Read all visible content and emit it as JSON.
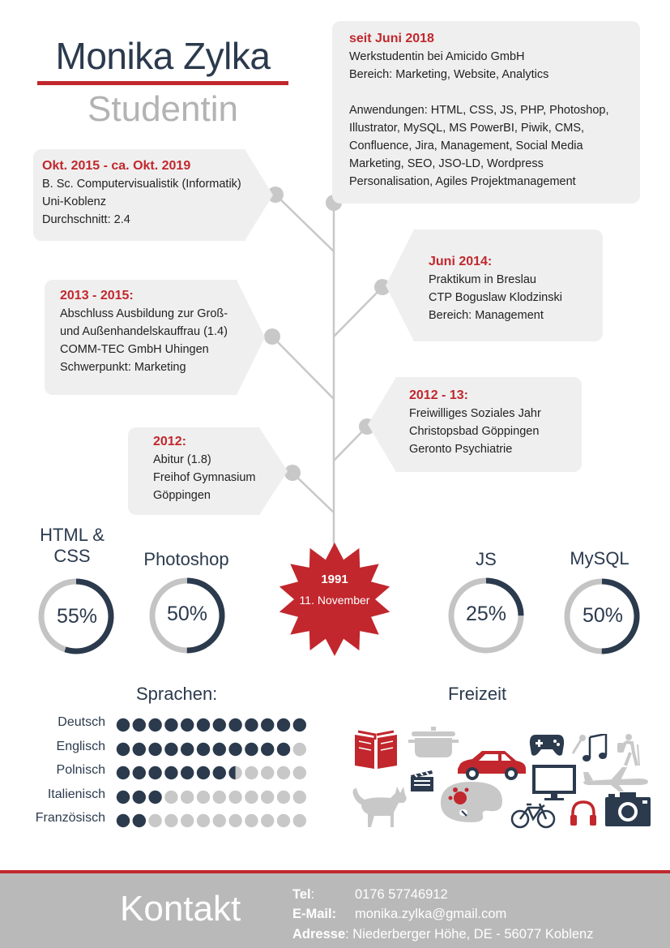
{
  "header": {
    "name": "Monika Zylka",
    "role": "Studentin"
  },
  "timeline": [
    {
      "id": "t1",
      "heading": "seit Juni 2018",
      "lines": [
        "Werkstudentin bei Amicido GmbH",
        "Bereich: Marketing, Website, Analytics",
        "",
        "Anwendungen: HTML, CSS, JS, PHP, Photoshop,",
        "Illustrator, MySQL, MS PowerBI, Piwik, CMS,",
        "Confluence, Jira, Management, Social Media",
        "Marketing, SEO, JSO-LD, Wordpress",
        "Personalisation, Agiles Projektmanagement"
      ]
    },
    {
      "id": "t2",
      "heading": "Okt. 2015 - ca. Okt. 2019",
      "lines": [
        "B. Sc. Computervisualistik (Informatik)",
        "Uni-Koblenz",
        "Durchschnitt: 2.4"
      ]
    },
    {
      "id": "t3",
      "heading": "Juni 2014:",
      "lines": [
        "Praktikum in Breslau",
        "CTP Boguslaw Klodzinski",
        "Bereich: Management"
      ]
    },
    {
      "id": "t4",
      "heading": "2013 - 2015:",
      "lines": [
        "Abschluss Ausbildung zur Groß-",
        "und Außenhandelskauffrau (1.4)",
        "COMM-TEC GmbH Uhingen",
        "Schwerpunkt: Marketing"
      ]
    },
    {
      "id": "t5",
      "heading": "2012 - 13:",
      "lines": [
        "Freiwilliges Soziales Jahr",
        "Christopsbad Göppingen",
        "Geronto Psychiatrie"
      ]
    },
    {
      "id": "t6",
      "heading": "2012:",
      "lines": [
        "Abitur (1.8)",
        "Freihof Gymnasium",
        "Göppingen"
      ]
    }
  ],
  "birth": {
    "year": "1991",
    "day": "11. November"
  },
  "skills": [
    {
      "label": "HTML &\nCSS",
      "percent": 55,
      "text": "55%"
    },
    {
      "label": "Photoshop",
      "percent": 50,
      "text": "50%"
    },
    {
      "label": "JS",
      "percent": 25,
      "text": "25%"
    },
    {
      "label": "MySQL",
      "percent": 50,
      "text": "50%"
    }
  ],
  "languages_title": "Sprachen:",
  "languages": [
    {
      "name": "Deutsch",
      "filled": 12,
      "total": 12
    },
    {
      "name": "Englisch",
      "filled": 11,
      "total": 12
    },
    {
      "name": "Polnisch",
      "filled": 7.5,
      "total": 12
    },
    {
      "name": "Italienisch",
      "filled": 3,
      "total": 12
    },
    {
      "name": "Französisch",
      "filled": 2,
      "total": 12
    }
  ],
  "hobbies_title": "Freizeit",
  "hobbies": [
    "book-icon",
    "cooking-pot-icon",
    "gamepad-icon",
    "microphone-icon",
    "music-icon",
    "hiking-icon",
    "clapperboard-icon",
    "car-icon",
    "monitor-icon",
    "airplane-icon",
    "cat-icon",
    "paint-palette-icon",
    "bicycle-icon",
    "headphones-icon",
    "camera-icon"
  ],
  "contact": {
    "title": "Kontakt",
    "tel_label": "Tel",
    "tel": "0176 57746912",
    "email_label": "E-Mail:",
    "email": "monika.zylka@gmail.com",
    "address_label": "Adresse",
    "address": "Niederberger Höhe, DE - 56077 Koblenz"
  },
  "colors": {
    "accent": "#c1272d",
    "navy": "#2b3a4d",
    "grey": "#b9b9b9",
    "card": "#efefef"
  }
}
